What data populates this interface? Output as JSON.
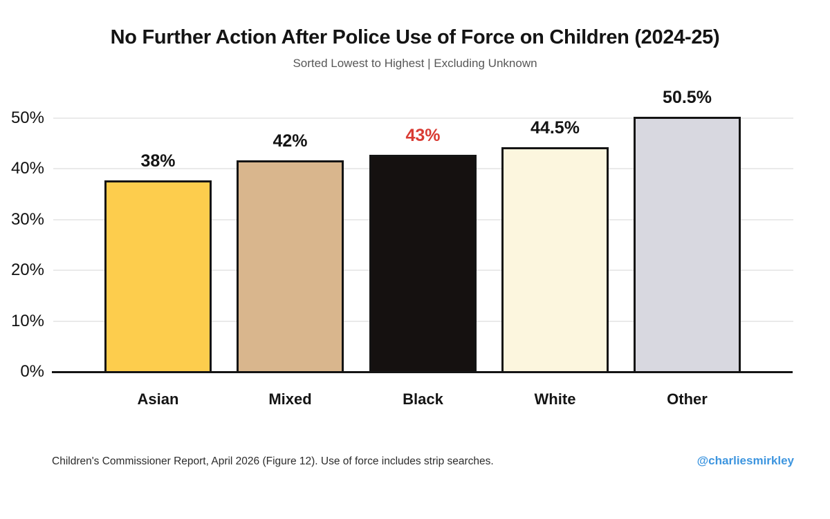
{
  "header": {
    "title": "No Further Action After Police Use of Force on Children (2024-25)",
    "subtitle": "Sorted Lowest to Highest | Excluding Unknown"
  },
  "chart_data": {
    "type": "bar",
    "title": "No Further Action After Police Use of Force on Children (2024-25)",
    "subtitle": "Sorted Lowest to Highest | Excluding Unknown",
    "categories": [
      "Asian",
      "Mixed",
      "Black",
      "White",
      "Other"
    ],
    "values": [
      38,
      42,
      43,
      44.5,
      50.5
    ],
    "value_labels": [
      "38%",
      "42%",
      "43%",
      "44.5%",
      "50.5%"
    ],
    "bar_colors": [
      "#FDCD4D",
      "#D9B68D",
      "#151110",
      "#FCF6DE",
      "#D8D8E0"
    ],
    "bar_border_color": "#141414",
    "label_colors": [
      "#141414",
      "#141414",
      "#D93B33",
      "#141414",
      "#141414"
    ],
    "highlighted_category": "Black",
    "highlight_color": "#D93B33",
    "xlabel": "",
    "ylabel": "",
    "ylim": [
      0,
      55
    ],
    "yticks": [
      {
        "value": 0,
        "label": "0%"
      },
      {
        "value": 10,
        "label": "10%"
      },
      {
        "value": 20,
        "label": "20%"
      },
      {
        "value": 30,
        "label": "30%"
      },
      {
        "value": 40,
        "label": "40%"
      },
      {
        "value": 50,
        "label": "50%"
      }
    ],
    "grid": "horizontal",
    "gridline_color": "#eaeaea",
    "legend": "none"
  },
  "footer": {
    "source": "Children's Commissioner Report, April 2026 (Figure 12). Use of force includes strip searches.",
    "handle": "@charliesmirkley",
    "handle_color": "#3d95df"
  }
}
